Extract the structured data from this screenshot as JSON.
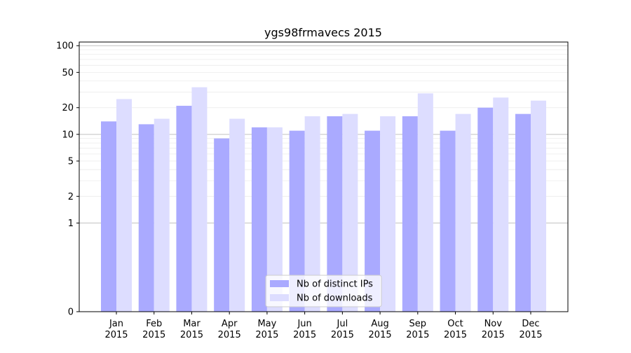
{
  "chart_data": {
    "type": "bar",
    "title": "ygs98frmavecs 2015",
    "xlabel": "",
    "ylabel": "",
    "yscale": "symlog",
    "ylim": [
      0,
      110
    ],
    "yticks": [
      0,
      1,
      2,
      5,
      10,
      20,
      50,
      100
    ],
    "grid": true,
    "legend_position": "bottom-center",
    "categories": [
      [
        "Jan",
        "2015"
      ],
      [
        "Feb",
        "2015"
      ],
      [
        "Mar",
        "2015"
      ],
      [
        "Apr",
        "2015"
      ],
      [
        "May",
        "2015"
      ],
      [
        "Jun",
        "2015"
      ],
      [
        "Jul",
        "2015"
      ],
      [
        "Aug",
        "2015"
      ],
      [
        "Sep",
        "2015"
      ],
      [
        "Oct",
        "2015"
      ],
      [
        "Nov",
        "2015"
      ],
      [
        "Dec",
        "2015"
      ]
    ],
    "series": [
      {
        "name": "Nb of distinct IPs",
        "color": "#aaaaff",
        "values": [
          14,
          13,
          21,
          9,
          12,
          11,
          16,
          11,
          16,
          11,
          20,
          17
        ]
      },
      {
        "name": "Nb of downloads",
        "color": "#ddddff",
        "values": [
          25,
          15,
          34,
          15,
          12,
          16,
          17,
          16,
          29,
          17,
          26,
          24
        ]
      }
    ]
  }
}
